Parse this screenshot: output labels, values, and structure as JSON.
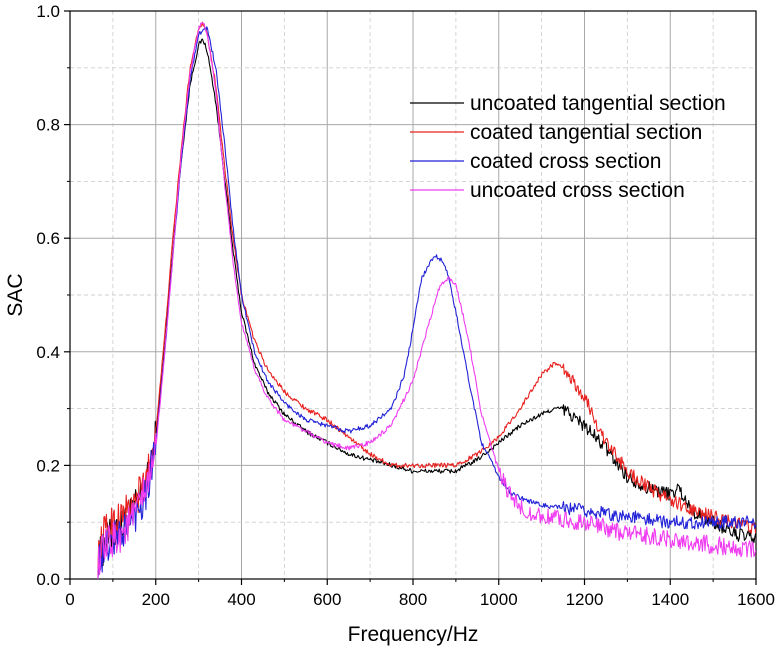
{
  "chart_data": {
    "type": "line",
    "title": "",
    "xlabel": "Frequency/Hz",
    "ylabel": "SAC",
    "xlim": [
      0,
      1600
    ],
    "ylim": [
      0.0,
      1.0
    ],
    "x_ticks": [
      "0",
      "200",
      "400",
      "600",
      "800",
      "1000",
      "1200",
      "1400",
      "1600"
    ],
    "y_ticks": [
      "0.0",
      "0.2",
      "0.4",
      "0.6",
      "0.8",
      "1.0"
    ],
    "grid": true,
    "legend_position": "top-right",
    "series": [
      {
        "name": "uncoated tangential section",
        "color": "#000000",
        "x": [
          65,
          80,
          100,
          120,
          150,
          180,
          200,
          220,
          240,
          260,
          280,
          300,
          310,
          320,
          340,
          360,
          380,
          400,
          430,
          460,
          500,
          550,
          600,
          650,
          700,
          750,
          800,
          850,
          900,
          950,
          1000,
          1050,
          1100,
          1130,
          1150,
          1200,
          1250,
          1300,
          1350,
          1400,
          1420,
          1450,
          1500,
          1550,
          1600
        ],
        "y": [
          0.03,
          0.06,
          0.08,
          0.09,
          0.12,
          0.17,
          0.25,
          0.4,
          0.58,
          0.74,
          0.87,
          0.94,
          0.95,
          0.93,
          0.84,
          0.71,
          0.58,
          0.47,
          0.38,
          0.33,
          0.29,
          0.26,
          0.24,
          0.22,
          0.21,
          0.2,
          0.19,
          0.19,
          0.19,
          0.21,
          0.24,
          0.27,
          0.29,
          0.3,
          0.3,
          0.27,
          0.23,
          0.18,
          0.16,
          0.15,
          0.16,
          0.12,
          0.1,
          0.08,
          0.07
        ]
      },
      {
        "name": "coated tangential section",
        "color": "#e8211f",
        "x": [
          65,
          80,
          100,
          120,
          150,
          180,
          200,
          220,
          240,
          260,
          280,
          300,
          310,
          320,
          340,
          360,
          380,
          400,
          430,
          460,
          500,
          550,
          600,
          650,
          700,
          750,
          800,
          850,
          900,
          950,
          1000,
          1050,
          1100,
          1130,
          1150,
          1200,
          1250,
          1300,
          1350,
          1400,
          1450,
          1500,
          1550,
          1600
        ],
        "y": [
          0.04,
          0.08,
          0.1,
          0.11,
          0.13,
          0.18,
          0.26,
          0.42,
          0.6,
          0.76,
          0.9,
          0.97,
          0.98,
          0.96,
          0.87,
          0.73,
          0.6,
          0.5,
          0.42,
          0.37,
          0.33,
          0.3,
          0.28,
          0.25,
          0.22,
          0.2,
          0.2,
          0.2,
          0.2,
          0.22,
          0.25,
          0.3,
          0.36,
          0.38,
          0.37,
          0.32,
          0.24,
          0.19,
          0.16,
          0.14,
          0.12,
          0.11,
          0.1,
          0.09
        ]
      },
      {
        "name": "coated cross section",
        "color": "#2222d8",
        "x": [
          65,
          80,
          100,
          120,
          150,
          180,
          200,
          220,
          240,
          260,
          280,
          300,
          320,
          340,
          360,
          380,
          400,
          430,
          460,
          500,
          550,
          600,
          650,
          700,
          750,
          780,
          800,
          820,
          850,
          870,
          880,
          900,
          930,
          960,
          1000,
          1030,
          1060,
          1100,
          1200,
          1300,
          1400,
          1500,
          1600
        ],
        "y": [
          0.03,
          0.05,
          0.07,
          0.08,
          0.11,
          0.16,
          0.24,
          0.39,
          0.57,
          0.74,
          0.88,
          0.96,
          0.97,
          0.9,
          0.77,
          0.62,
          0.5,
          0.4,
          0.35,
          0.31,
          0.28,
          0.27,
          0.26,
          0.27,
          0.3,
          0.36,
          0.44,
          0.53,
          0.57,
          0.56,
          0.54,
          0.47,
          0.35,
          0.24,
          0.18,
          0.15,
          0.14,
          0.13,
          0.12,
          0.11,
          0.1,
          0.1,
          0.1
        ]
      },
      {
        "name": "uncoated cross section",
        "color": "#f03cf0",
        "x": [
          65,
          80,
          100,
          120,
          150,
          180,
          200,
          220,
          240,
          260,
          280,
          300,
          310,
          320,
          340,
          360,
          380,
          400,
          430,
          460,
          500,
          550,
          600,
          650,
          700,
          750,
          800,
          830,
          860,
          880,
          900,
          930,
          960,
          1000,
          1030,
          1060,
          1100,
          1200,
          1300,
          1400,
          1500,
          1600
        ],
        "y": [
          0.03,
          0.05,
          0.07,
          0.08,
          0.11,
          0.16,
          0.23,
          0.39,
          0.57,
          0.75,
          0.89,
          0.97,
          0.98,
          0.96,
          0.86,
          0.7,
          0.56,
          0.45,
          0.37,
          0.32,
          0.28,
          0.26,
          0.24,
          0.23,
          0.24,
          0.27,
          0.35,
          0.43,
          0.51,
          0.53,
          0.52,
          0.42,
          0.29,
          0.19,
          0.14,
          0.12,
          0.11,
          0.1,
          0.08,
          0.07,
          0.06,
          0.05
        ]
      }
    ]
  }
}
